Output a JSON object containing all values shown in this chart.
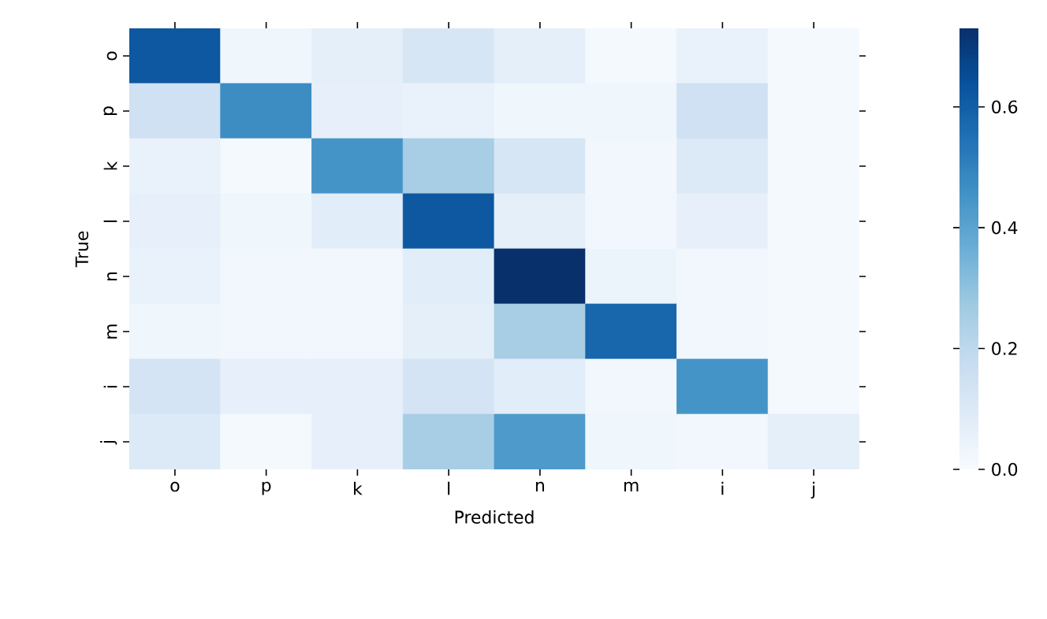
{
  "chart_data": {
    "type": "heatmap",
    "xlabel": "Predicted",
    "ylabel": "True",
    "categories": [
      "o",
      "p",
      "k",
      "l",
      "n",
      "m",
      "i",
      "j"
    ],
    "y_categories": [
      "o",
      "p",
      "k",
      "l",
      "n",
      "m",
      "i",
      "j"
    ],
    "cells": [
      [
        0.62,
        0.03,
        0.07,
        0.12,
        0.07,
        0.01,
        0.05,
        0.01
      ],
      [
        0.15,
        0.47,
        0.06,
        0.05,
        0.03,
        0.03,
        0.15,
        0.01
      ],
      [
        0.05,
        0.01,
        0.45,
        0.25,
        0.12,
        0.02,
        0.1,
        0.01
      ],
      [
        0.06,
        0.03,
        0.08,
        0.62,
        0.07,
        0.02,
        0.06,
        0.01
      ],
      [
        0.05,
        0.02,
        0.02,
        0.08,
        0.73,
        0.04,
        0.02,
        0.01
      ],
      [
        0.03,
        0.02,
        0.02,
        0.07,
        0.25,
        0.58,
        0.02,
        0.01
      ],
      [
        0.13,
        0.06,
        0.06,
        0.13,
        0.08,
        0.02,
        0.45,
        0.01
      ],
      [
        0.1,
        0.01,
        0.06,
        0.25,
        0.43,
        0.03,
        0.02,
        0.07
      ]
    ],
    "clim": [
      0,
      0.73
    ],
    "cticks": [
      {
        "value": 0,
        "label": "0.0"
      },
      {
        "value": 0.2,
        "label": "0.2"
      },
      {
        "value": 0.4,
        "label": "0.4"
      },
      {
        "value": 0.6,
        "label": "0.6"
      }
    ]
  }
}
